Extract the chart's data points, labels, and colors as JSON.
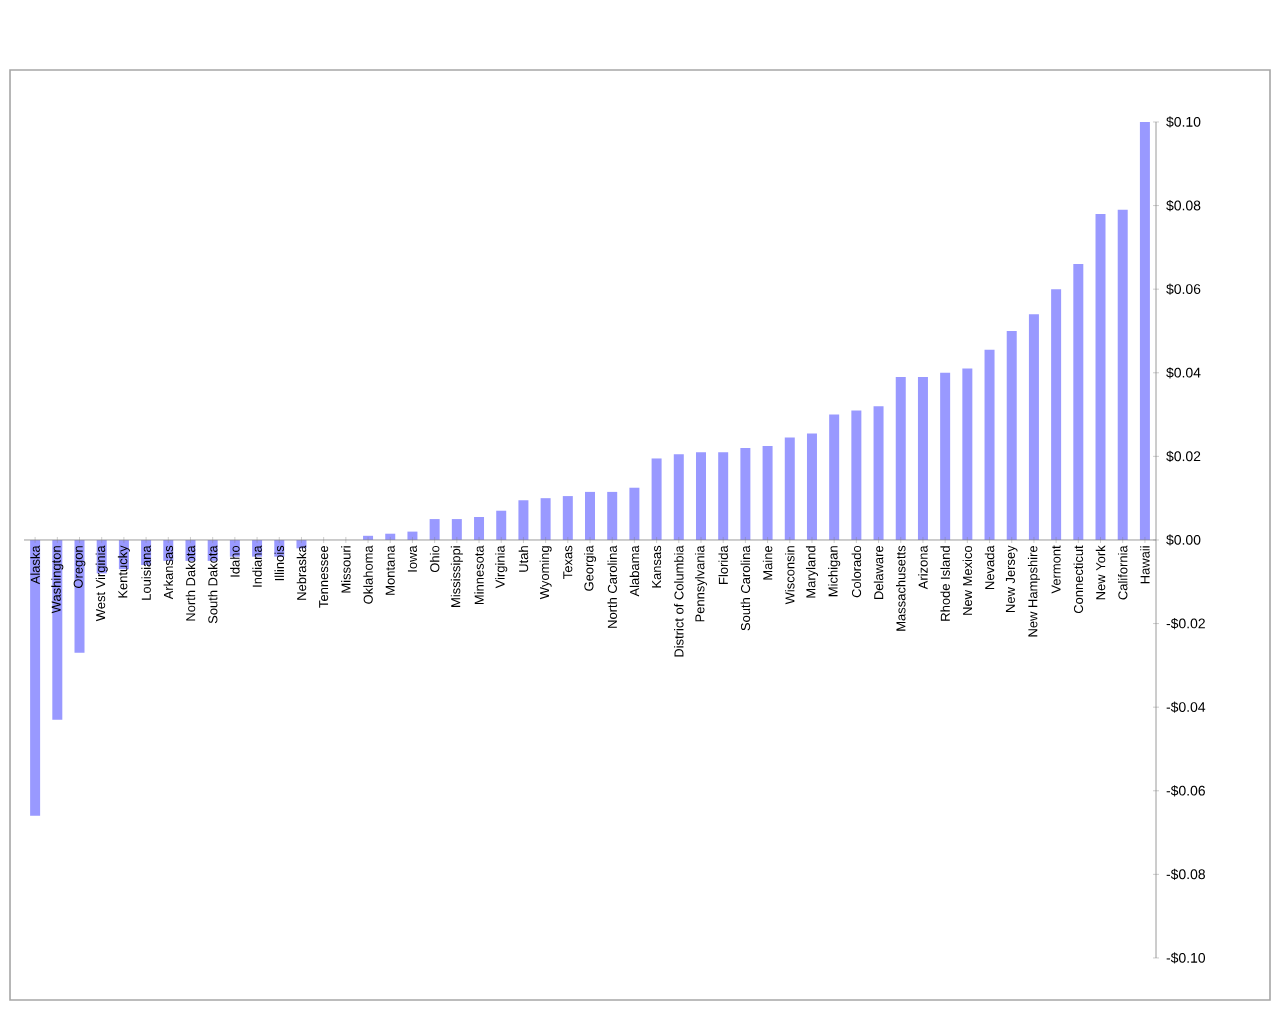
{
  "chart_data": {
    "type": "bar",
    "categories": [
      "Alaska",
      "Washington",
      "Oregon",
      "West Virginia",
      "Kentucky",
      "Louisiana",
      "Arkansas",
      "North Dakota",
      "South Dakota",
      "Idaho",
      "Indiana",
      "Illinois",
      "Nebraska",
      "Tennessee",
      "Missouri",
      "Oklahoma",
      "Montana",
      "Iowa",
      "Ohio",
      "Mississippi",
      "Minnesota",
      "Virginia",
      "Utah",
      "Wyoming",
      "Texas",
      "Georgia",
      "North Carolina",
      "Alabama",
      "Kansas",
      "District of Columbia",
      "Pennsylvania",
      "Florida",
      "South Carolina",
      "Maine",
      "Wisconsin",
      "Maryland",
      "Michigan",
      "Colorado",
      "Delaware",
      "Massachusetts",
      "Arizona",
      "Rhode Island",
      "New Mexico",
      "Nevada",
      "New Jersey",
      "New Hampshire",
      "Vermont",
      "Connecticut",
      "New York",
      "California",
      "Hawaii"
    ],
    "values": [
      -0.066,
      -0.043,
      -0.027,
      -0.008,
      -0.007,
      -0.006,
      -0.005,
      -0.005,
      -0.005,
      -0.004,
      -0.004,
      -0.004,
      -0.002,
      0,
      0,
      0.001,
      0.0015,
      0.002,
      0.005,
      0.005,
      0.0055,
      0.007,
      0.0095,
      0.01,
      0.0105,
      0.0115,
      0.0115,
      0.0125,
      0.0195,
      0.0205,
      0.021,
      0.021,
      0.022,
      0.0225,
      0.0245,
      0.0255,
      0.03,
      0.031,
      0.032,
      0.039,
      0.039,
      0.04,
      0.041,
      0.0455,
      0.05,
      0.054,
      0.06,
      0.066,
      0.078,
      0.079,
      0.1
    ],
    "color": "#9999ff",
    "ylim": [
      -0.1,
      0.1
    ],
    "yticks": [
      {
        "value": -0.1,
        "label": "-$0.10"
      },
      {
        "value": -0.08,
        "label": "-$0.08"
      },
      {
        "value": -0.06,
        "label": "-$0.06"
      },
      {
        "value": -0.04,
        "label": "-$0.04"
      },
      {
        "value": -0.02,
        "label": "-$0.02"
      },
      {
        "value": 0,
        "label": "$0.00"
      },
      {
        "value": 0.02,
        "label": "$0.02"
      },
      {
        "value": 0.04,
        "label": "$0.04"
      },
      {
        "value": 0.06,
        "label": "$0.06"
      },
      {
        "value": 0.08,
        "label": "$0.08"
      },
      {
        "value": 0.1,
        "label": "$0.10"
      }
    ],
    "grid": false
  }
}
